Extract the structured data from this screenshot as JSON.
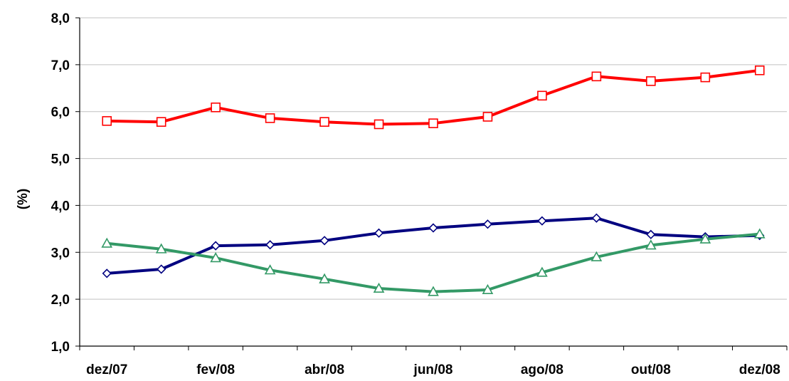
{
  "chart_data": {
    "type": "line",
    "ylabel": "(%)",
    "xlabel": "",
    "ylim": [
      1.0,
      8.0
    ],
    "y_ticks": [
      "1,0",
      "2,0",
      "3,0",
      "4,0",
      "5,0",
      "6,0",
      "7,0",
      "8,0"
    ],
    "x_tick_labels": [
      "dez/07",
      "fev/08",
      "abr/08",
      "jun/08",
      "ago/08",
      "out/08",
      "dez/08"
    ],
    "categories": [
      "dez/07",
      "jan/08",
      "fev/08",
      "mar/08",
      "abr/08",
      "mai/08",
      "jun/08",
      "jul/08",
      "ago/08",
      "set/08",
      "out/08",
      "nov/08",
      "dez/08"
    ],
    "grid": "horizontal",
    "series": [
      {
        "color": "#ff0000",
        "marker": "square",
        "values": [
          5.8,
          5.78,
          6.09,
          5.86,
          5.78,
          5.73,
          5.75,
          5.89,
          6.34,
          6.75,
          6.65,
          6.73,
          6.88
        ]
      },
      {
        "color": "#000080",
        "marker": "diamond",
        "values": [
          2.55,
          2.64,
          3.14,
          3.16,
          3.25,
          3.41,
          3.52,
          3.6,
          3.67,
          3.73,
          3.38,
          3.33,
          3.36
        ]
      },
      {
        "color": "#339966",
        "marker": "triangle",
        "values": [
          3.19,
          3.07,
          2.88,
          2.62,
          2.43,
          2.23,
          2.16,
          2.2,
          2.57,
          2.9,
          3.15,
          3.28,
          3.39
        ]
      }
    ]
  }
}
